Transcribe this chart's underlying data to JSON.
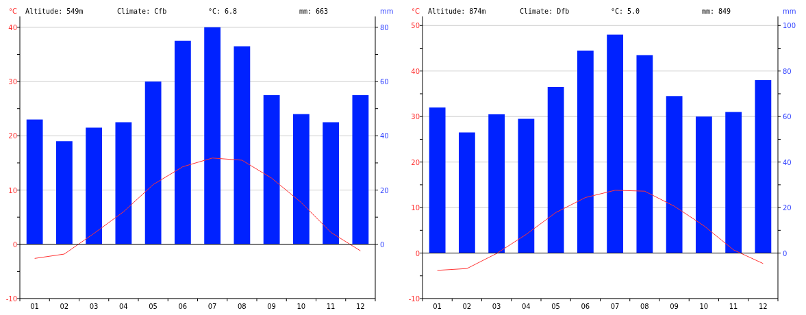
{
  "chart_data": [
    {
      "type": "bar",
      "categories": [
        "01",
        "02",
        "03",
        "04",
        "05",
        "06",
        "07",
        "08",
        "09",
        "10",
        "11",
        "12"
      ],
      "ylabel": "°C",
      "y2label": "mm",
      "annotations": [
        "Altitude: 549m",
        "Climate: Cfb",
        "°C: 6.8",
        "mm: 663"
      ],
      "series": [
        {
          "axis": "y2",
          "color": "#0022ff",
          "values": [
            46,
            38,
            43,
            45,
            60,
            75,
            80,
            73,
            55,
            48,
            45,
            55
          ]
        },
        {
          "type": "line",
          "axis": "y",
          "color": "#ff3333",
          "values": [
            -2.6,
            -1.8,
            2.0,
            6.0,
            11.0,
            14.3,
            15.9,
            15.5,
            12.2,
            7.7,
            2.2,
            -1.2
          ]
        }
      ],
      "ylim": [
        -10,
        42
      ],
      "yticks": [
        -10,
        {
          "value": -5,
          "label": null
        },
        0,
        {
          "value": 5,
          "label": null
        },
        10,
        {
          "value": 15,
          "label": null
        },
        20,
        {
          "value": 25,
          "label": null
        },
        30,
        {
          "value": 35,
          "label": null
        },
        40
      ],
      "y2lim": [
        -20,
        84
      ],
      "y2ticks": [
        0,
        {
          "value": 10,
          "label": null
        },
        20,
        {
          "value": 30,
          "label": null
        },
        40,
        {
          "value": 50,
          "label": null
        },
        60,
        {
          "value": 70,
          "label": null
        },
        80
      ],
      "grid": "y",
      "marker": "none",
      "line_style": "solid"
    },
    {
      "type": "bar",
      "categories": [
        "01",
        "02",
        "03",
        "04",
        "05",
        "06",
        "07",
        "08",
        "09",
        "10",
        "11",
        "12"
      ],
      "ylabel": "°C",
      "y2label": "mm",
      "annotations": [
        "Altitude: 874m",
        "Climate: Dfb",
        "°C: 5.0",
        "mm: 849"
      ],
      "series": [
        {
          "axis": "y2",
          "color": "#0022ff",
          "values": [
            64,
            53,
            61,
            59,
            73,
            89,
            96,
            87,
            69,
            60,
            62,
            76
          ]
        },
        {
          "type": "line",
          "axis": "y",
          "color": "#ff3333",
          "values": [
            -3.8,
            -3.4,
            -0.1,
            4.1,
            8.9,
            12.2,
            13.8,
            13.6,
            10.3,
            6.0,
            0.7,
            -2.3
          ]
        }
      ],
      "ylim": [
        -10,
        52
      ],
      "yticks": [
        -10,
        {
          "value": -5,
          "label": null
        },
        0,
        {
          "value": 5,
          "label": null
        },
        10,
        {
          "value": 15,
          "label": null
        },
        20,
        {
          "value": 25,
          "label": null
        },
        30,
        {
          "value": 35,
          "label": null
        },
        40,
        {
          "value": 45,
          "label": null
        },
        50
      ],
      "y2lim": [
        -20,
        104
      ],
      "y2ticks": [
        0,
        {
          "value": 10,
          "label": null
        },
        20,
        {
          "value": 30,
          "label": null
        },
        40,
        {
          "value": 50,
          "label": null
        },
        60,
        {
          "value": 70,
          "label": null
        },
        80,
        {
          "value": 90,
          "label": null
        },
        100
      ],
      "grid": "y",
      "marker": "none",
      "line_style": "solid"
    }
  ]
}
